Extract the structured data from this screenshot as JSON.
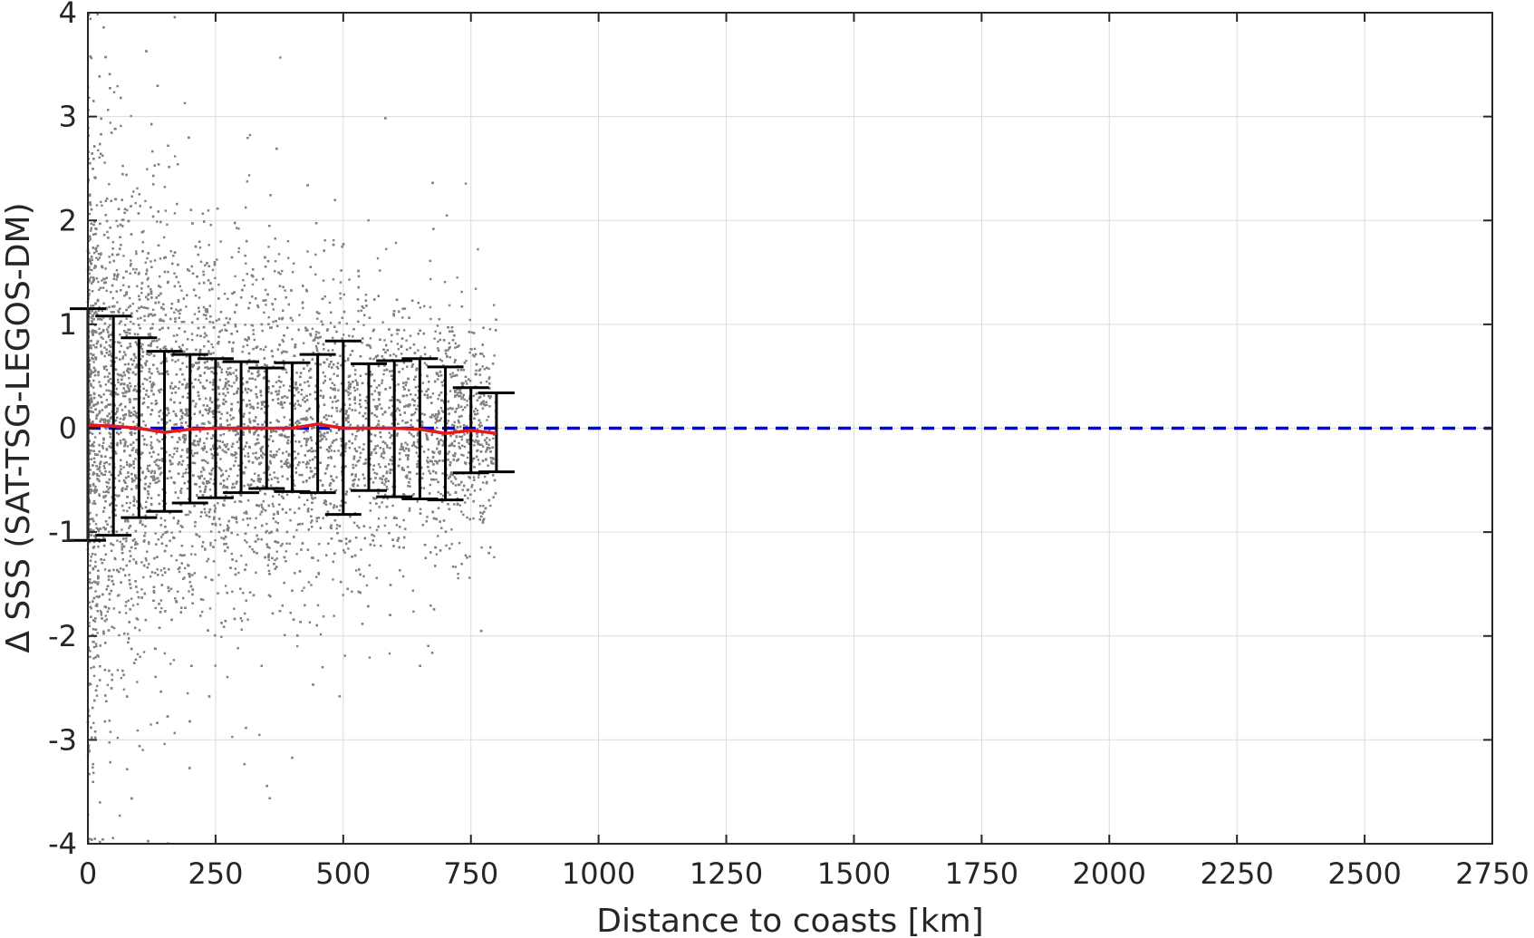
{
  "chart_data": {
    "type": "scatter",
    "title": "",
    "xlabel": "Distance to coasts [km]",
    "ylabel": "Δ SSS (SAT-TSG-LEGOS-DM)",
    "xlim": [
      0,
      2750
    ],
    "ylim": [
      -4,
      4
    ],
    "xticks": [
      0,
      250,
      500,
      750,
      1000,
      1250,
      1500,
      1750,
      2000,
      2250,
      2500,
      2750
    ],
    "yticks": [
      -4,
      -3,
      -2,
      -1,
      0,
      1,
      2,
      3,
      4
    ],
    "grid": true,
    "legend": "none",
    "colors": {
      "scatter": "#808080",
      "mean_line": "#e41a1c",
      "error_bar": "#000000",
      "zero_line": "#0000ee",
      "grid": "#dcdcdc",
      "axes": "#262626"
    },
    "reference_line": {
      "y": 0,
      "style": "dashed"
    },
    "scatter_cloud": {
      "x_range": [
        0,
        800
      ],
      "spread_sd_by_x": [
        [
          0,
          1.6
        ],
        [
          100,
          1.2
        ],
        [
          200,
          0.95
        ],
        [
          300,
          0.85
        ],
        [
          400,
          0.8
        ],
        [
          500,
          0.75
        ],
        [
          600,
          0.65
        ],
        [
          700,
          0.6
        ],
        [
          800,
          0.55
        ]
      ]
    },
    "binned_stats": {
      "x": [
        0,
        50,
        100,
        150,
        200,
        250,
        300,
        350,
        400,
        450,
        500,
        550,
        600,
        650,
        700,
        750,
        800
      ],
      "mean": [
        0.03,
        0.02,
        0.0,
        -0.04,
        -0.01,
        0.0,
        0.0,
        0.0,
        0.0,
        0.04,
        0.0,
        0.0,
        0.0,
        -0.01,
        -0.05,
        -0.02,
        -0.05
      ],
      "upper": [
        1.15,
        1.08,
        0.87,
        0.74,
        0.71,
        0.67,
        0.64,
        0.58,
        0.63,
        0.71,
        0.84,
        0.62,
        0.65,
        0.67,
        0.59,
        0.39,
        0.34
      ],
      "lower": [
        -1.08,
        -1.03,
        -0.86,
        -0.8,
        -0.72,
        -0.67,
        -0.62,
        -0.58,
        -0.61,
        -0.62,
        -0.83,
        -0.6,
        -0.66,
        -0.68,
        -0.69,
        -0.43,
        -0.42
      ]
    }
  }
}
